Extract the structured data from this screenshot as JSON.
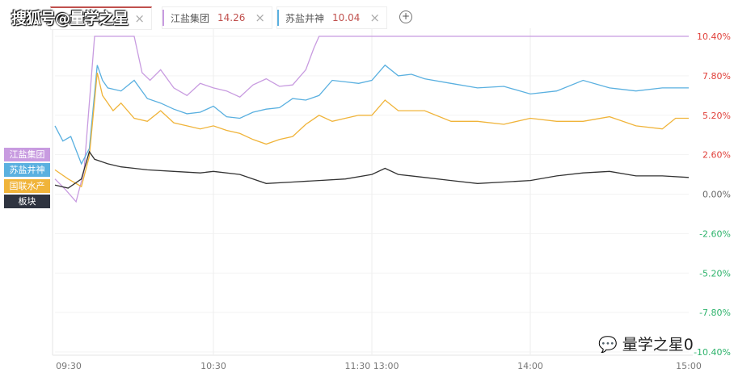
{
  "watermark": "搜狐号@量学之星",
  "tabs": [
    {
      "name": "",
      "value": "",
      "color": "#c0504d"
    },
    {
      "name": "江盐集团",
      "value": "14.26",
      "color": "#c89be0"
    },
    {
      "name": "苏盐井神",
      "value": "10.04",
      "color": "#5ab0e0"
    }
  ],
  "add_icon": "plus-circle-icon",
  "close_glyph": "×",
  "wechat_label": "量学之星0",
  "legend": [
    {
      "label": "江盐集团",
      "color": "#c89be0"
    },
    {
      "label": "苏盐井神",
      "color": "#5ab0e0"
    },
    {
      "label": "国联水产",
      "color": "#f0b43a"
    },
    {
      "label": "板块",
      "color": "#2f3440"
    }
  ],
  "chart_data": {
    "type": "line",
    "x_unit": "minutes of trading session",
    "xticks": [
      {
        "min": 0,
        "label": "09:30"
      },
      {
        "min": 60,
        "label": "10:30"
      },
      {
        "min": 120,
        "label": "11:30 13:00"
      },
      {
        "min": 180,
        "label": "14:00"
      },
      {
        "min": 240,
        "label": "15:00"
      }
    ],
    "yticks": [
      10.4,
      7.8,
      5.2,
      2.6,
      0,
      -2.6,
      -5.2,
      -7.8,
      -10.4
    ],
    "ytick_labels": [
      "10.40%",
      "7.80%",
      "5.20%",
      "2.60%",
      "0.00%",
      "-2.60%",
      "-5.20%",
      "-7.80%",
      "-10.40%"
    ],
    "ylim": [
      -10.4,
      10.4
    ],
    "grid": true,
    "series": [
      {
        "name": "江盐集团",
        "color": "#c89be0",
        "points": [
          [
            0,
            1
          ],
          [
            4,
            0.3
          ],
          [
            8,
            -0.5
          ],
          [
            11,
            1.5
          ],
          [
            13,
            6
          ],
          [
            15,
            10.4
          ],
          [
            30,
            10.4
          ],
          [
            33,
            8
          ],
          [
            36,
            7.5
          ],
          [
            40,
            8.2
          ],
          [
            45,
            7
          ],
          [
            50,
            6.5
          ],
          [
            55,
            7.3
          ],
          [
            60,
            7
          ],
          [
            65,
            6.8
          ],
          [
            70,
            6.4
          ],
          [
            75,
            7.2
          ],
          [
            80,
            7.6
          ],
          [
            85,
            7.1
          ],
          [
            90,
            7.2
          ],
          [
            95,
            8.2
          ],
          [
            98,
            9.6
          ],
          [
            100,
            10.4
          ],
          [
            240,
            10.4
          ]
        ]
      },
      {
        "name": "苏盐井神",
        "color": "#5ab0e0",
        "points": [
          [
            0,
            4.5
          ],
          [
            3,
            3.5
          ],
          [
            6,
            3.8
          ],
          [
            10,
            2
          ],
          [
            13,
            3
          ],
          [
            16,
            8.5
          ],
          [
            18,
            7.5
          ],
          [
            20,
            7
          ],
          [
            25,
            6.8
          ],
          [
            30,
            7.5
          ],
          [
            35,
            6.3
          ],
          [
            40,
            6
          ],
          [
            45,
            5.6
          ],
          [
            50,
            5.3
          ],
          [
            55,
            5.4
          ],
          [
            60,
            5.8
          ],
          [
            65,
            5.1
          ],
          [
            70,
            5
          ],
          [
            75,
            5.4
          ],
          [
            80,
            5.6
          ],
          [
            85,
            5.7
          ],
          [
            90,
            6.3
          ],
          [
            95,
            6.2
          ],
          [
            100,
            6.5
          ],
          [
            105,
            7.5
          ],
          [
            110,
            7.4
          ],
          [
            115,
            7.3
          ],
          [
            120,
            7.5
          ],
          [
            125,
            8.5
          ],
          [
            130,
            7.8
          ],
          [
            135,
            7.9
          ],
          [
            140,
            7.6
          ],
          [
            150,
            7.3
          ],
          [
            160,
            7
          ],
          [
            170,
            7.1
          ],
          [
            180,
            6.6
          ],
          [
            190,
            6.8
          ],
          [
            200,
            7.5
          ],
          [
            210,
            7
          ],
          [
            220,
            6.8
          ],
          [
            230,
            7
          ],
          [
            240,
            7
          ]
        ]
      },
      {
        "name": "国联水产",
        "color": "#f0b43a",
        "points": [
          [
            0,
            1.6
          ],
          [
            5,
            1
          ],
          [
            10,
            0.5
          ],
          [
            13,
            2.5
          ],
          [
            16,
            8
          ],
          [
            18,
            6.5
          ],
          [
            22,
            5.5
          ],
          [
            25,
            6
          ],
          [
            30,
            5
          ],
          [
            35,
            4.8
          ],
          [
            40,
            5.5
          ],
          [
            45,
            4.7
          ],
          [
            50,
            4.5
          ],
          [
            55,
            4.3
          ],
          [
            60,
            4.5
          ],
          [
            65,
            4.2
          ],
          [
            70,
            4
          ],
          [
            75,
            3.6
          ],
          [
            80,
            3.3
          ],
          [
            85,
            3.6
          ],
          [
            90,
            3.8
          ],
          [
            95,
            4.6
          ],
          [
            100,
            5.2
          ],
          [
            105,
            4.8
          ],
          [
            110,
            5
          ],
          [
            115,
            5.2
          ],
          [
            120,
            5.2
          ],
          [
            125,
            6.2
          ],
          [
            130,
            5.5
          ],
          [
            140,
            5.5
          ],
          [
            150,
            4.8
          ],
          [
            160,
            4.8
          ],
          [
            170,
            4.6
          ],
          [
            180,
            5
          ],
          [
            190,
            4.8
          ],
          [
            200,
            4.8
          ],
          [
            210,
            5.1
          ],
          [
            220,
            4.5
          ],
          [
            230,
            4.3
          ],
          [
            235,
            5
          ],
          [
            240,
            5
          ]
        ]
      },
      {
        "name": "板块",
        "color": "#333333",
        "points": [
          [
            0,
            0.6
          ],
          [
            5,
            0.4
          ],
          [
            10,
            1
          ],
          [
            13,
            2.8
          ],
          [
            15,
            2.3
          ],
          [
            20,
            2
          ],
          [
            25,
            1.8
          ],
          [
            30,
            1.7
          ],
          [
            35,
            1.6
          ],
          [
            45,
            1.5
          ],
          [
            55,
            1.4
          ],
          [
            60,
            1.5
          ],
          [
            70,
            1.3
          ],
          [
            80,
            0.7
          ],
          [
            90,
            0.8
          ],
          [
            100,
            0.9
          ],
          [
            110,
            1
          ],
          [
            120,
            1.3
          ],
          [
            125,
            1.7
          ],
          [
            130,
            1.3
          ],
          [
            140,
            1.1
          ],
          [
            150,
            0.9
          ],
          [
            160,
            0.7
          ],
          [
            170,
            0.8
          ],
          [
            180,
            0.9
          ],
          [
            190,
            1.2
          ],
          [
            200,
            1.4
          ],
          [
            210,
            1.5
          ],
          [
            220,
            1.2
          ],
          [
            230,
            1.2
          ],
          [
            240,
            1.1
          ]
        ]
      }
    ]
  }
}
